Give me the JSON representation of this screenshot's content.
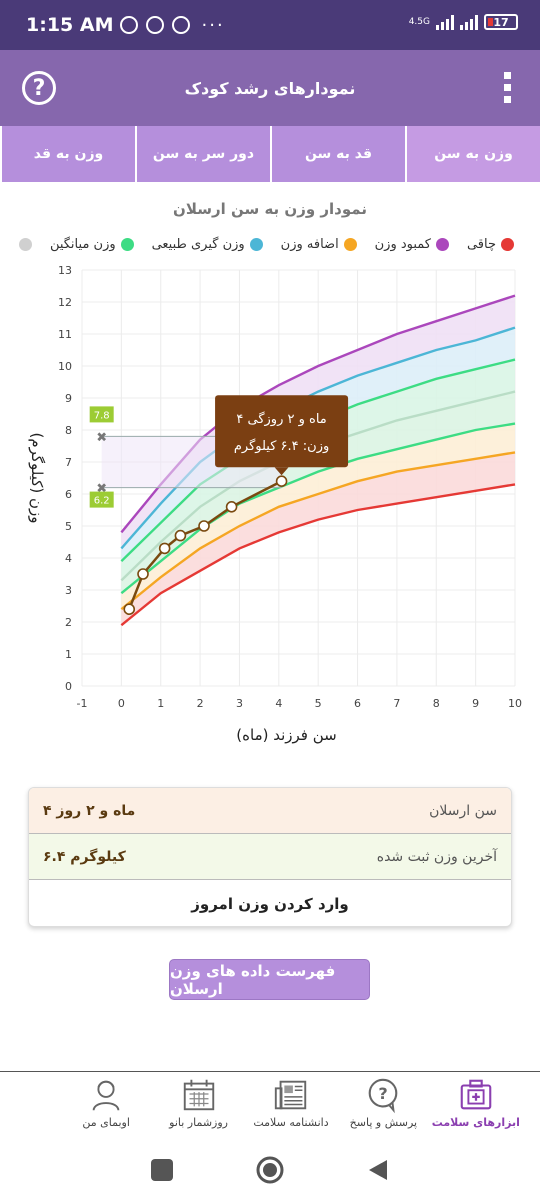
{
  "status": {
    "time": "1:15 AM",
    "network": "4.5G",
    "battery": "17",
    "more": "···"
  },
  "appbar": {
    "title": "نمودارهای رشد کودک",
    "help_icon": "help-circle-icon",
    "menu_icon": "kebab-menu-icon"
  },
  "tabs": [
    {
      "label": "وزن به سن",
      "active": true
    },
    {
      "label": "قد به سن",
      "active": false
    },
    {
      "label": "دور سر به سن",
      "active": false
    },
    {
      "label": "وزن به قد",
      "active": false
    }
  ],
  "chart_title": "نمودار وزن به سن ارسلان",
  "legend": [
    {
      "label": "چاقی",
      "color": "#e53935"
    },
    {
      "label": "کمبود وزن",
      "color": "#ab47bc"
    },
    {
      "label": "اضافه وزن",
      "color": "#f5a623"
    },
    {
      "label": "وزن گیری طبیعی",
      "color": "#4cb6d6"
    },
    {
      "label": "وزن میانگین",
      "color": "#3ddc84"
    },
    {
      "label": "",
      "color": "#d0d0d0"
    }
  ],
  "chart_data": {
    "type": "line",
    "xlabel": "سن فرزند (ماه)",
    "ylabel": "وزن (کیلوگرم)",
    "xlim": [
      -1,
      10
    ],
    "ylim": [
      0,
      13
    ],
    "x_ticks": [
      "-1",
      "0",
      "1",
      "2",
      "3",
      "4",
      "5",
      "6",
      "7",
      "8",
      "9",
      "10"
    ],
    "y_ticks": [
      "0",
      "1",
      "2",
      "3",
      "4",
      "5",
      "6",
      "7",
      "8",
      "9",
      "10",
      "11",
      "12",
      "13"
    ],
    "x": [
      0,
      1,
      2,
      3,
      4,
      5,
      6,
      7,
      8,
      9,
      10
    ],
    "series": [
      {
        "color": "#ab47bc",
        "values": [
          4.8,
          6.3,
          7.7,
          8.7,
          9.4,
          10.0,
          10.5,
          11.0,
          11.4,
          11.8,
          12.2
        ]
      },
      {
        "color": "#4cb6d6",
        "values": [
          4.3,
          5.7,
          7.0,
          7.9,
          8.6,
          9.2,
          9.7,
          10.1,
          10.5,
          10.8,
          11.2
        ]
      },
      {
        "color": "#3ddc84",
        "values": [
          3.9,
          5.1,
          6.3,
          7.1,
          7.7,
          8.3,
          8.8,
          9.2,
          9.6,
          9.9,
          10.2
        ]
      },
      {
        "color": "#b9ddc6",
        "values": [
          3.3,
          4.5,
          5.6,
          6.4,
          7.0,
          7.5,
          7.9,
          8.3,
          8.6,
          8.9,
          9.2
        ]
      },
      {
        "color": "#3ddc84",
        "values": [
          2.9,
          3.9,
          4.9,
          5.7,
          6.2,
          6.7,
          7.1,
          7.4,
          7.7,
          8.0,
          8.2
        ]
      },
      {
        "color": "#f5a623",
        "values": [
          2.4,
          3.4,
          4.3,
          5.0,
          5.6,
          6.0,
          6.4,
          6.7,
          6.9,
          7.1,
          7.3
        ]
      },
      {
        "color": "#e53935",
        "values": [
          1.9,
          2.9,
          3.6,
          4.3,
          4.8,
          5.2,
          5.5,
          5.7,
          5.9,
          6.1,
          6.3
        ]
      }
    ],
    "child_series": {
      "color": "#7a4a10",
      "x": [
        0.2,
        0.55,
        1.1,
        1.5,
        2.1,
        2.8,
        4.07
      ],
      "values": [
        2.4,
        3.5,
        4.3,
        4.7,
        5.0,
        5.6,
        6.4
      ]
    },
    "range_markers": [
      {
        "label": "7.8",
        "value": 7.8
      },
      {
        "label": "6.2",
        "value": 6.2
      }
    ],
    "tooltip": {
      "line1": "۴ ماه و ۲ روزگی",
      "line2": "وزن: ۶.۴ کیلوگرم"
    }
  },
  "info": {
    "age_label": "سن ارسلان",
    "age_value": "۴ ماه و ۲ روز",
    "weight_label": "آخرین وزن ثبت شده",
    "weight_value": "۶.۴ کیلوگرم",
    "enter_label": "وارد کردن وزن امروز"
  },
  "list_button": "فهرست داده های وزن ارسلان",
  "bottom_nav": [
    {
      "label": "ابزارهای سلامت",
      "icon": "medical-kit-icon",
      "active": true
    },
    {
      "label": "پرسش و پاسخ",
      "icon": "question-bubble-icon",
      "active": false
    },
    {
      "label": "دانشنامه سلامت",
      "icon": "newspaper-icon",
      "active": false
    },
    {
      "label": "روزشمار بانو",
      "icon": "calendar-icon",
      "active": false
    },
    {
      "label": "اوبمای من",
      "icon": "user-icon",
      "active": false
    }
  ]
}
